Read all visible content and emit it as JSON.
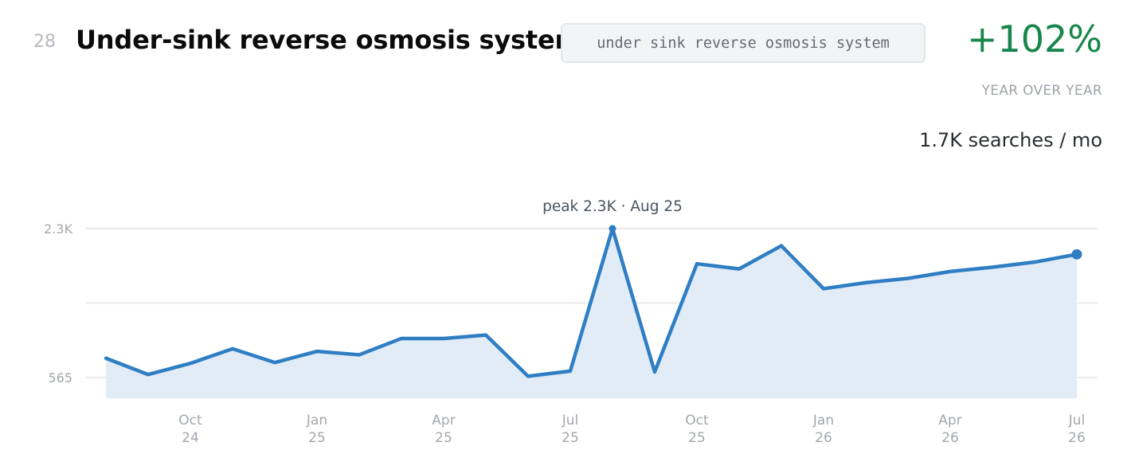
{
  "header": {
    "rank": "28",
    "title": "Under-sink reverse osmosis systems",
    "keyword": "under sink reverse osmosis system",
    "growth": "+102%",
    "growth_label": "YEAR OVER YEAR",
    "volume": "1.7K searches / mo"
  },
  "colors": {
    "line": "#2f7ec4",
    "area": "#e1ecf7",
    "growth": "#17864a",
    "grid": "#ebebeb"
  },
  "chart_data": {
    "type": "area",
    "title": "",
    "xlabel": "",
    "ylabel": "",
    "ylim": [
      565,
      2300
    ],
    "y_ticks": [
      {
        "value": 565,
        "label": "565"
      },
      {
        "value": 2300,
        "label": "2.3K"
      }
    ],
    "y_grid": [
      565,
      1432,
      2300
    ],
    "grid": true,
    "x_ticks": [
      {
        "index": 2,
        "line1": "Oct",
        "line2": "24"
      },
      {
        "index": 5,
        "line1": "Jan",
        "line2": "25"
      },
      {
        "index": 8,
        "line1": "Apr",
        "line2": "25"
      },
      {
        "index": 11,
        "line1": "Jul",
        "line2": "25"
      },
      {
        "index": 14,
        "line1": "Oct",
        "line2": "25"
      },
      {
        "index": 17,
        "line1": "Jan",
        "line2": "26"
      },
      {
        "index": 20,
        "line1": "Apr",
        "line2": "26"
      },
      {
        "index": 23,
        "line1": "Jul",
        "line2": "26"
      }
    ],
    "x": [
      "Aug 24",
      "Sep 24",
      "Oct 24",
      "Nov 24",
      "Dec 24",
      "Jan 25",
      "Feb 25",
      "Mar 25",
      "Apr 25",
      "May 25",
      "Jun 25",
      "Jul 25",
      "Aug 25",
      "Sep 25",
      "Oct 25",
      "Nov 25",
      "Dec 25",
      "Jan 26",
      "Feb 26",
      "Mar 26",
      "Apr 26",
      "May 26",
      "Jun 26",
      "Jul 26"
    ],
    "values": [
      790,
      600,
      730,
      900,
      740,
      870,
      830,
      1020,
      1020,
      1060,
      580,
      640,
      2300,
      630,
      1890,
      1830,
      2100,
      1600,
      1670,
      1720,
      1800,
      1850,
      1910,
      2000
    ],
    "peak_annotation": {
      "index": 12,
      "text": "peak 2.3K · Aug 25"
    }
  }
}
